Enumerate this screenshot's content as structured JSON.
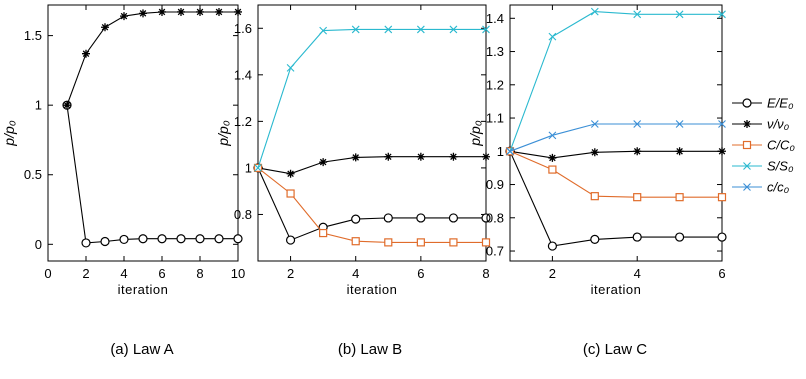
{
  "colors": {
    "black": "#000000",
    "orange": "#e06c2b",
    "cyan": "#2ab9cf",
    "blue": "#3b8fd6"
  },
  "legend": [
    {
      "label": "E/E₀",
      "color": "#000000",
      "marker": "circle"
    },
    {
      "label": "ν/ν₀",
      "color": "#000000",
      "marker": "star"
    },
    {
      "label": "C/C₀",
      "color": "#e06c2b",
      "marker": "square"
    },
    {
      "label": "S/S₀",
      "color": "#2ab9cf",
      "marker": "x"
    },
    {
      "label": "c/c₀",
      "color": "#3b8fd6",
      "marker": "x"
    }
  ],
  "chart_data": [
    {
      "type": "line",
      "caption": "(a) Law A",
      "xlabel": "iteration",
      "ylabel": "p/p₀",
      "xlim": [
        0,
        10
      ],
      "ylim": [
        -0.12,
        1.72
      ],
      "xticks": [
        0,
        2,
        4,
        6,
        8,
        10
      ],
      "xticklabels": [
        "0",
        "2",
        "4",
        "6",
        "8",
        "10"
      ],
      "yticks": [
        0,
        0.5,
        1,
        1.5
      ],
      "yticklabels": [
        "0",
        "0.5",
        "1",
        "1.5"
      ],
      "series": [
        {
          "name": "E/E₀",
          "color": "#000000",
          "marker": "circle",
          "x": [
            1,
            2,
            3,
            4,
            5,
            6,
            7,
            8,
            9,
            10
          ],
          "y": [
            1.0,
            0.01,
            0.02,
            0.035,
            0.04,
            0.04,
            0.04,
            0.04,
            0.04,
            0.04
          ]
        },
        {
          "name": "ν/ν₀",
          "color": "#000000",
          "marker": "star",
          "x": [
            1,
            2,
            3,
            4,
            5,
            6,
            7,
            8,
            9,
            10
          ],
          "y": [
            1.0,
            1.37,
            1.56,
            1.64,
            1.66,
            1.67,
            1.67,
            1.67,
            1.67,
            1.67
          ]
        }
      ]
    },
    {
      "type": "line",
      "caption": "(b) Law B",
      "xlabel": "iteration",
      "ylabel": "p/p₀",
      "xlim": [
        1,
        8
      ],
      "ylim": [
        0.6,
        1.7
      ],
      "xticks": [
        2,
        4,
        6,
        8
      ],
      "xticklabels": [
        "2",
        "4",
        "6",
        "8"
      ],
      "yticks": [
        0.8,
        1.0,
        1.2,
        1.4,
        1.6
      ],
      "yticklabels": [
        "0.8",
        "1",
        "1.2",
        "1.4",
        "1.6"
      ],
      "series": [
        {
          "name": "E/E₀",
          "color": "#000000",
          "marker": "circle",
          "x": [
            1,
            2,
            3,
            4,
            5,
            6,
            7,
            8
          ],
          "y": [
            1.0,
            0.69,
            0.745,
            0.78,
            0.785,
            0.785,
            0.785,
            0.785
          ]
        },
        {
          "name": "ν/ν₀",
          "color": "#000000",
          "marker": "star",
          "x": [
            1,
            2,
            3,
            4,
            5,
            6,
            7,
            8
          ],
          "y": [
            1.0,
            0.975,
            1.025,
            1.045,
            1.048,
            1.048,
            1.048,
            1.048
          ]
        },
        {
          "name": "C/C₀",
          "color": "#e06c2b",
          "marker": "square",
          "x": [
            1,
            2,
            3,
            4,
            5,
            6,
            7,
            8
          ],
          "y": [
            1.0,
            0.89,
            0.72,
            0.685,
            0.68,
            0.68,
            0.68,
            0.68
          ]
        },
        {
          "name": "S/S₀",
          "color": "#2ab9cf",
          "marker": "x",
          "x": [
            1,
            2,
            3,
            4,
            5,
            6,
            7,
            8
          ],
          "y": [
            1.0,
            1.43,
            1.59,
            1.595,
            1.595,
            1.595,
            1.595,
            1.595
          ]
        }
      ]
    },
    {
      "type": "line",
      "caption": "(c) Law C",
      "xlabel": "iteration",
      "ylabel": "p/p₀",
      "xlim": [
        1,
        6
      ],
      "ylim": [
        0.67,
        1.44
      ],
      "xticks": [
        2,
        4,
        6
      ],
      "xticklabels": [
        "2",
        "4",
        "6"
      ],
      "yticks": [
        0.7,
        0.8,
        0.9,
        1.0,
        1.1,
        1.2,
        1.3,
        1.4
      ],
      "yticklabels": [
        "0.7",
        "0.8",
        "0.9",
        "1",
        "1.1",
        "1.2",
        "1.3",
        "1.4"
      ],
      "series": [
        {
          "name": "E/E₀",
          "color": "#000000",
          "marker": "circle",
          "x": [
            1,
            2,
            3,
            4,
            5,
            6
          ],
          "y": [
            1.0,
            0.715,
            0.735,
            0.742,
            0.742,
            0.742
          ]
        },
        {
          "name": "ν/ν₀",
          "color": "#000000",
          "marker": "star",
          "x": [
            1,
            2,
            3,
            4,
            5,
            6
          ],
          "y": [
            1.0,
            0.98,
            0.997,
            1.0,
            1.0,
            1.0
          ]
        },
        {
          "name": "C/C₀",
          "color": "#e06c2b",
          "marker": "square",
          "x": [
            1,
            2,
            3,
            4,
            5,
            6
          ],
          "y": [
            1.0,
            0.945,
            0.865,
            0.862,
            0.862,
            0.862
          ]
        },
        {
          "name": "S/S₀",
          "color": "#2ab9cf",
          "marker": "x",
          "x": [
            1,
            2,
            3,
            4,
            5,
            6
          ],
          "y": [
            1.0,
            1.345,
            1.42,
            1.412,
            1.412,
            1.412
          ]
        },
        {
          "name": "c/c₀",
          "color": "#3b8fd6",
          "marker": "x",
          "x": [
            1,
            2,
            3,
            4,
            5,
            6
          ],
          "y": [
            1.0,
            1.048,
            1.082,
            1.082,
            1.082,
            1.082
          ]
        }
      ]
    }
  ]
}
